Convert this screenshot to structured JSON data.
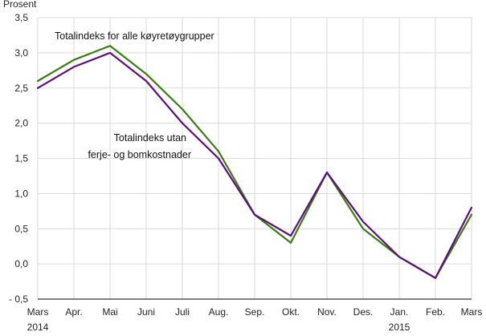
{
  "chart_data": {
    "type": "line",
    "ylabel": "Prosent",
    "ylim": [
      -0.5,
      3.5
    ],
    "yticks": [
      -0.5,
      0.0,
      0.5,
      1.0,
      1.5,
      2.0,
      2.5,
      3.0,
      3.5
    ],
    "ytick_labels": [
      "- 0,5",
      "0,0",
      "0,5",
      "1,0",
      "1,5",
      "2,0",
      "2,5",
      "3,0",
      "3,5"
    ],
    "categories": [
      "Mars",
      "Apr.",
      "Mai",
      "Juni",
      "Juli",
      "Aug.",
      "Sep.",
      "Okt.",
      "Nov.",
      "Des.",
      "Jan.",
      "Feb.",
      "Mars"
    ],
    "year_labels": [
      {
        "index": 0,
        "text": "2014"
      },
      {
        "index": 10,
        "text": "2015"
      }
    ],
    "grid": true,
    "series": [
      {
        "name": "Totalindeks for alle køyretøygrupper",
        "color": "#3a7d12",
        "values": [
          2.6,
          2.9,
          3.1,
          2.7,
          2.2,
          1.6,
          0.7,
          0.3,
          1.3,
          0.5,
          0.1,
          -0.2,
          0.7
        ]
      },
      {
        "name": "Totalindeks utan ferje- og bomkostnader",
        "color": "#5b0f7a",
        "values": [
          2.5,
          2.8,
          3.0,
          2.6,
          2.0,
          1.5,
          0.7,
          0.4,
          1.3,
          0.6,
          0.1,
          -0.2,
          0.8
        ]
      }
    ],
    "annotations": [
      {
        "lines": [
          "Totalindeks for alle køyretøygrupper"
        ]
      },
      {
        "lines": [
          "Totalindeks utan",
          "ferje- og bomkostnader"
        ]
      }
    ]
  }
}
